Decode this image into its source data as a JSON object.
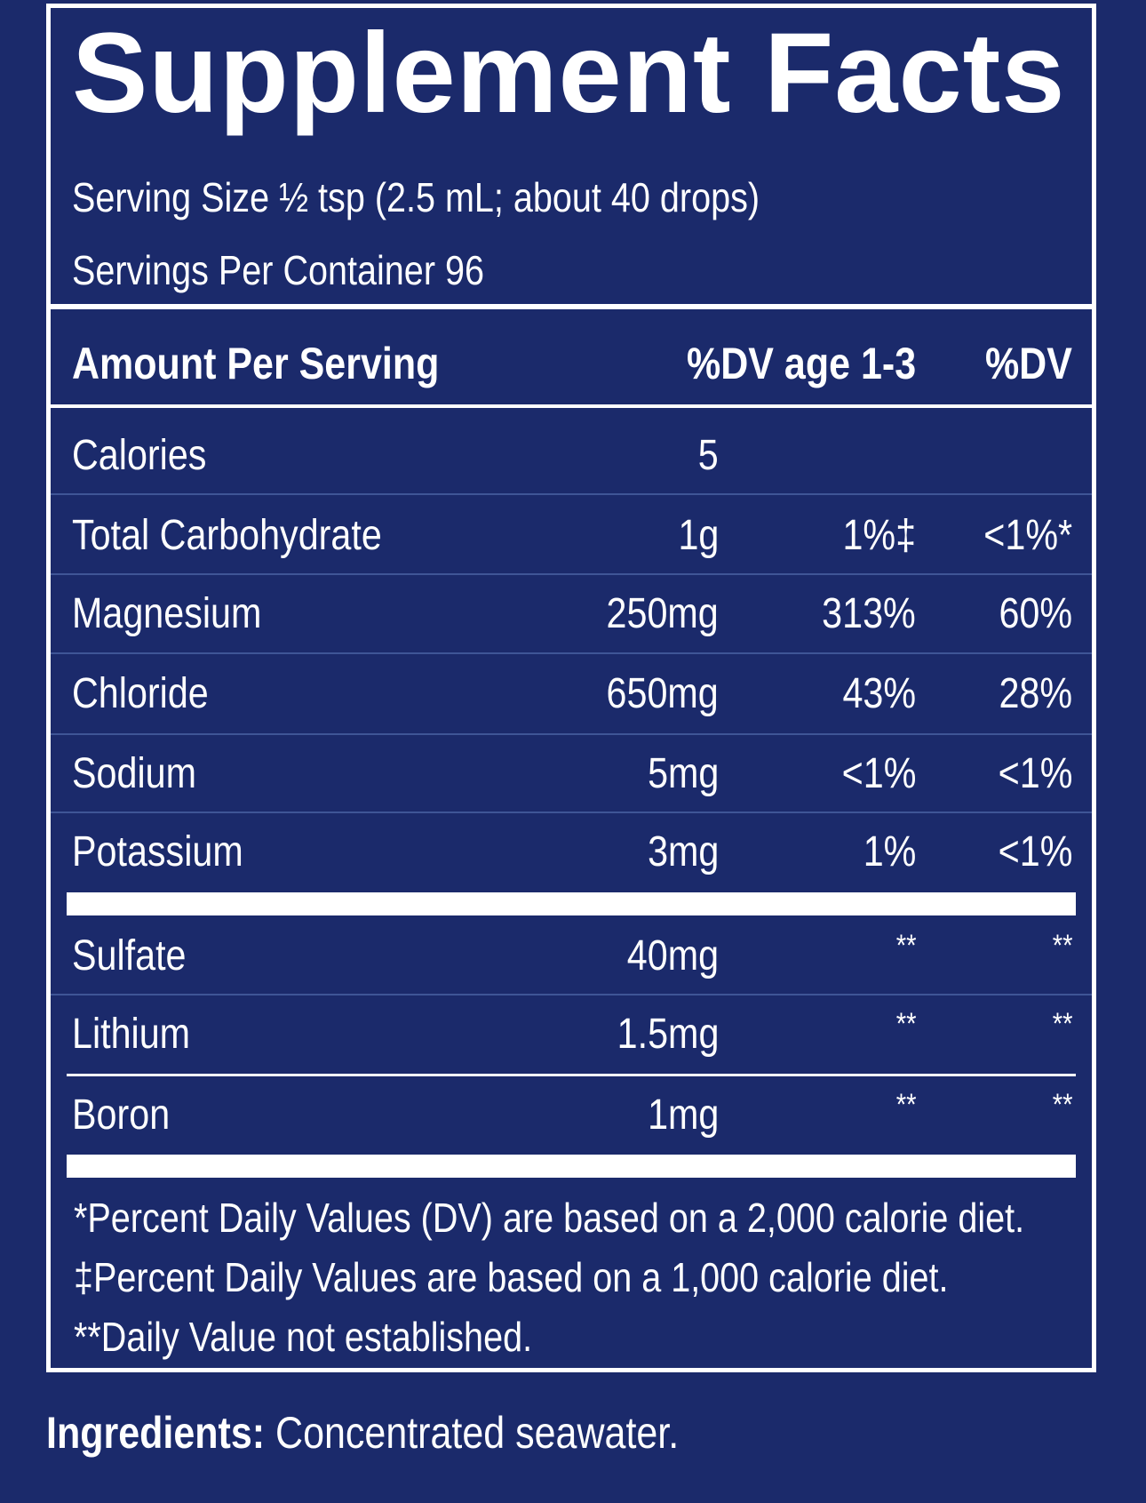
{
  "title": "Supplement Facts",
  "serving_size": "Serving Size ½ tsp (2.5 mL; about 40 drops)",
  "servings_per_container": "Servings Per Container 96",
  "header": {
    "amount_per_serving": "Amount Per Serving",
    "dv_age": "%DV age 1-3",
    "dv": "%DV"
  },
  "rows": [
    {
      "name": "Calories",
      "amount": "5",
      "dv_age": "",
      "dv": ""
    },
    {
      "name": "Total Carbohydrate",
      "amount": "1g",
      "dv_age": "1%‡",
      "dv": "<1%*"
    },
    {
      "name": "Magnesium",
      "amount": "250mg",
      "dv_age": "313%",
      "dv": "60%"
    },
    {
      "name": "Chloride",
      "amount": "650mg",
      "dv_age": "43%",
      "dv": "28%"
    },
    {
      "name": "Sodium",
      "amount": "5mg",
      "dv_age": "<1%",
      "dv": "<1%"
    },
    {
      "name": "Potassium",
      "amount": "3mg",
      "dv_age": "1%",
      "dv": "<1%"
    },
    {
      "name": "Sulfate",
      "amount": "40mg",
      "dv_age": "**",
      "dv": "**"
    },
    {
      "name": "Lithium",
      "amount": "1.5mg",
      "dv_age": "**",
      "dv": "**"
    },
    {
      "name": "Boron",
      "amount": "1mg",
      "dv_age": "**",
      "dv": "**"
    }
  ],
  "footnotes": [
    "*Percent Daily Values (DV) are based on a 2,000 calorie diet.",
    "‡Percent Daily Values are based on a 1,000 calorie diet.",
    "**Daily Value not established."
  ],
  "ingredients": {
    "label": "Ingredients:",
    "text": " Concentrated seawater."
  },
  "colors": {
    "background": "#1b2a6b",
    "text": "#ffffff"
  }
}
